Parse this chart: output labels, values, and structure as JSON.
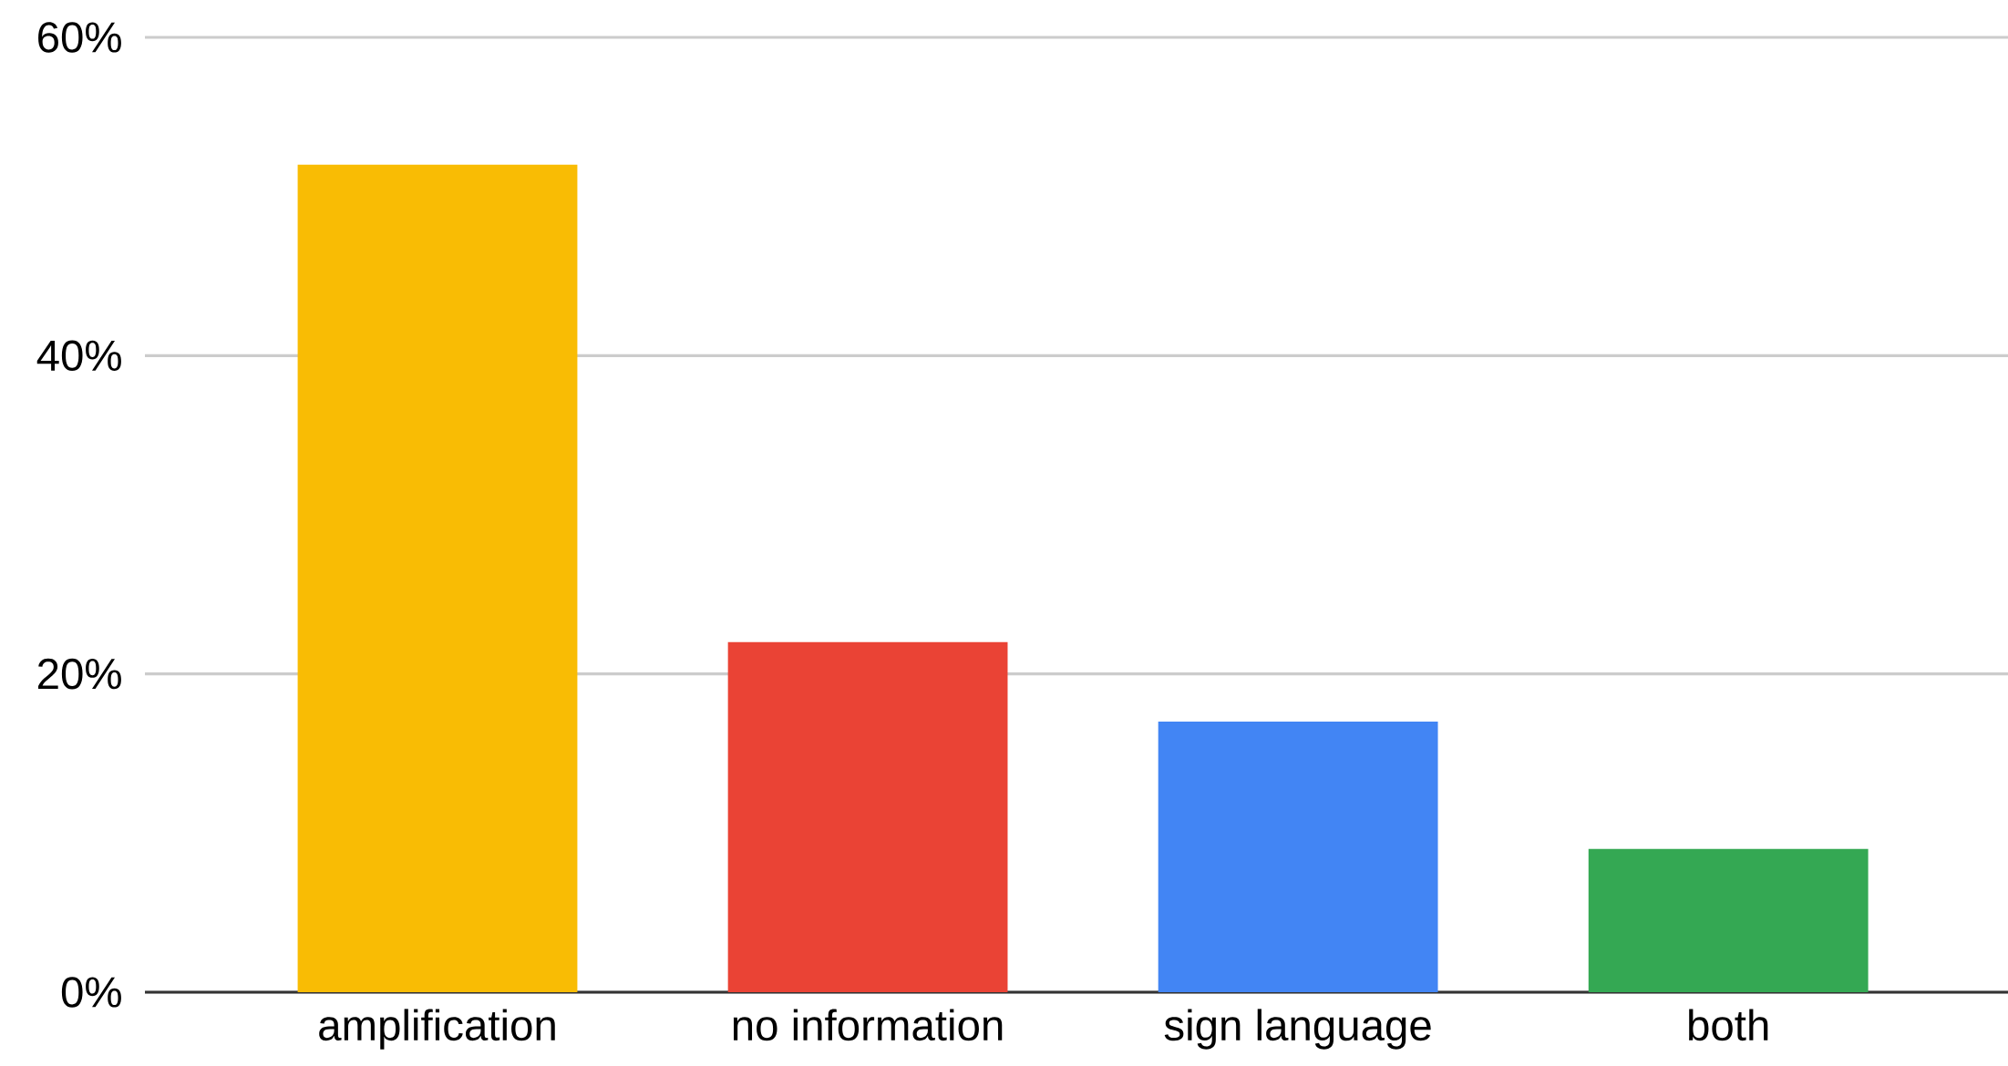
{
  "chart_data": {
    "type": "bar",
    "categories": [
      "amplification",
      "no information",
      "sign language",
      "both"
    ],
    "values": [
      52,
      22,
      17,
      9
    ],
    "colors": [
      "#f9bc04",
      "#ea4335",
      "#4285f4",
      "#34a853"
    ],
    "ylim": [
      0,
      60
    ],
    "yticks": [
      {
        "value": 0,
        "label": "0%"
      },
      {
        "value": 20,
        "label": "20%"
      },
      {
        "value": 40,
        "label": "40%"
      },
      {
        "value": 60,
        "label": "60%"
      }
    ],
    "grid": "y"
  }
}
